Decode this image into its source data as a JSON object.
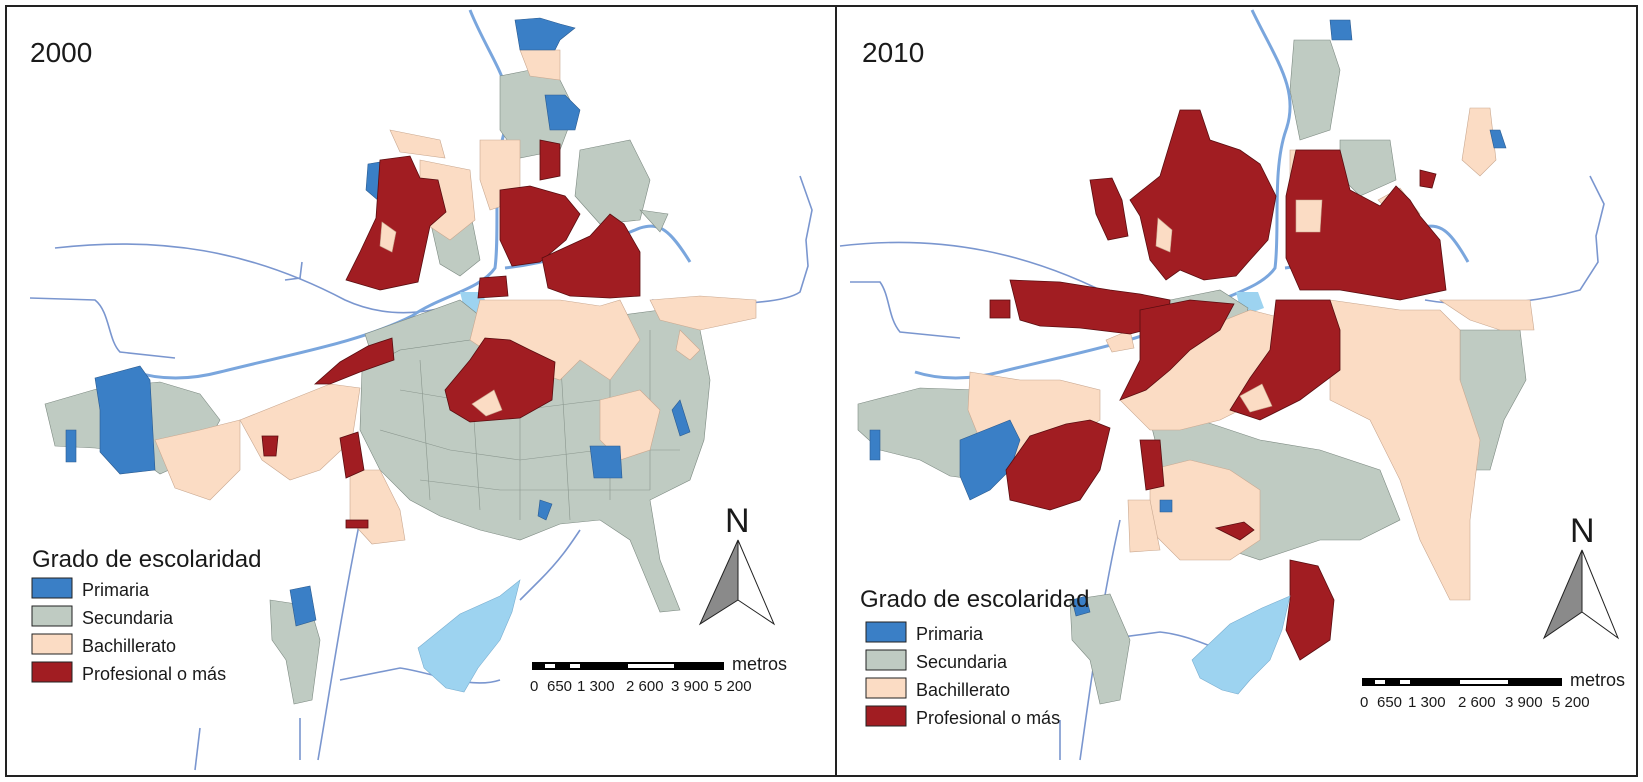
{
  "colors": {
    "primaria": "#3a7fc6",
    "secundaria": "#bfcbc2",
    "bachillerato": "#fbdcc4",
    "profesional": "#a11d22",
    "river": "#6b8fd0",
    "lake": "#9dd3f0"
  },
  "panels": [
    {
      "year": "2000"
    },
    {
      "year": "2010"
    }
  ],
  "legend": {
    "title": "Grado de escolaridad",
    "items": [
      {
        "label": "Primaria",
        "color_key": "primaria"
      },
      {
        "label": "Secundaria",
        "color_key": "secundaria"
      },
      {
        "label": "Bachillerato",
        "color_key": "bachillerato"
      },
      {
        "label": "Profesional o más",
        "color_key": "profesional"
      }
    ]
  },
  "scale_bar": {
    "unit": "metros",
    "ticks": [
      "0",
      "650",
      "1 300",
      "2 600",
      "3 900",
      "5 200"
    ]
  },
  "north_arrow": {
    "label": "N",
    "icon": "north-arrow-icon"
  }
}
